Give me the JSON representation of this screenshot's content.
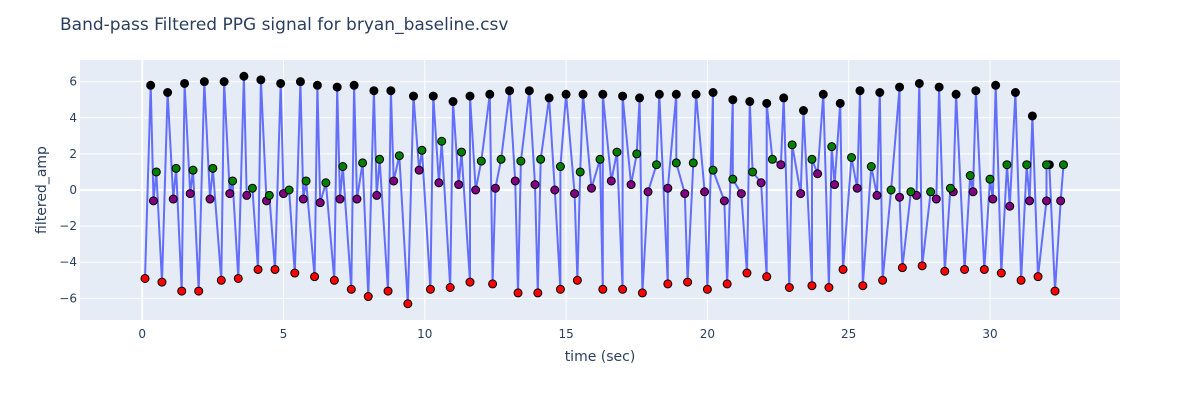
{
  "chart_data": {
    "type": "scatter",
    "title": "Band-pass Filtered PPG signal for bryan_baseline.csv",
    "xlabel": "time (sec)",
    "ylabel": "filtered_amp",
    "xlim": [
      -2.2,
      34.6
    ],
    "ylim": [
      -7.2,
      7.2
    ],
    "x_ticks": [
      0,
      5,
      10,
      15,
      20,
      25,
      30
    ],
    "y_ticks": [
      -6,
      -4,
      -2,
      0,
      2,
      4,
      6
    ],
    "grid": true,
    "legend": "none",
    "colors": {
      "plot_bg": "#e5ecf6",
      "grid": "#ffffff",
      "line": "#636efa",
      "systolic_peak": "#000000",
      "dicrotic_peak": "#008000",
      "dicrotic_notch": "#800080",
      "trough": "#ff0000"
    },
    "series": [
      {
        "marker": "trough",
        "x": [
          0.1,
          0.7,
          1.4,
          2.0,
          2.8,
          3.4,
          4.1,
          4.7,
          5.4,
          6.1,
          6.8,
          7.4,
          8.0,
          8.7,
          9.4,
          10.2,
          10.9,
          11.6,
          12.4,
          13.3,
          14.0,
          14.8,
          15.4,
          16.3,
          17.0,
          17.7,
          18.6,
          19.3,
          20.0,
          20.7,
          21.4,
          22.1,
          22.9,
          23.7,
          24.3,
          24.8,
          25.5,
          26.2,
          26.9,
          27.6,
          28.4,
          29.1,
          29.8,
          30.4,
          31.1,
          31.7,
          32.3
        ],
        "y": [
          -4.9,
          -5.1,
          -5.6,
          -5.6,
          -5.0,
          -4.9,
          -4.4,
          -4.4,
          -4.6,
          -4.8,
          -5.0,
          -5.5,
          -5.9,
          -5.6,
          -6.3,
          -5.5,
          -5.4,
          -5.1,
          -5.2,
          -5.7,
          -5.7,
          -5.5,
          -5.0,
          -5.5,
          -5.5,
          -5.7,
          -5.2,
          -5.1,
          -5.5,
          -5.2,
          -4.6,
          -4.8,
          -5.4,
          -5.3,
          -5.4,
          -4.4,
          -5.3,
          -5.0,
          -4.3,
          -4.2,
          -4.5,
          -4.4,
          -4.4,
          -4.6,
          -5.0,
          -4.8,
          -5.6
        ]
      },
      {
        "marker": "systolic_peak",
        "x": [
          0.3,
          0.9,
          1.5,
          2.2,
          2.9,
          3.6,
          4.2,
          4.9,
          5.6,
          6.2,
          6.9,
          7.5,
          8.2,
          8.8,
          9.6,
          10.3,
          11.0,
          11.6,
          12.3,
          13.0,
          13.7,
          14.4,
          15.0,
          15.6,
          16.3,
          17.0,
          17.6,
          18.3,
          18.9,
          19.6,
          20.2,
          20.9,
          21.5,
          22.1,
          22.7,
          23.4,
          24.1,
          24.7,
          25.4,
          26.1,
          26.8,
          27.5,
          28.2,
          28.8,
          29.5,
          30.2,
          30.9,
          31.5,
          32.1
        ],
        "y": [
          5.8,
          5.4,
          5.9,
          6.0,
          6.0,
          6.3,
          6.1,
          5.9,
          6.0,
          5.8,
          5.7,
          5.8,
          5.5,
          5.5,
          5.2,
          5.2,
          4.9,
          5.2,
          5.3,
          5.5,
          5.5,
          5.1,
          5.3,
          5.3,
          5.3,
          5.2,
          5.1,
          5.3,
          5.3,
          5.3,
          5.4,
          5.0,
          4.9,
          4.8,
          5.1,
          4.4,
          5.3,
          4.8,
          5.5,
          5.4,
          5.7,
          5.9,
          5.7,
          5.3,
          5.5,
          5.8,
          5.4,
          4.1,
          1.4
        ]
      },
      {
        "marker": "dicrotic_notch",
        "x": [
          0.4,
          1.1,
          1.7,
          2.4,
          3.1,
          3.7,
          4.4,
          5.0,
          5.7,
          6.3,
          7.0,
          7.6,
          8.3,
          8.9,
          9.8,
          10.5,
          11.2,
          11.8,
          12.5,
          13.2,
          13.9,
          14.6,
          15.3,
          15.9,
          16.6,
          17.3,
          17.9,
          18.6,
          19.2,
          19.9,
          20.6,
          21.2,
          21.9,
          22.6,
          23.3,
          23.9,
          24.5,
          25.3,
          26.0,
          26.8,
          27.4,
          28.1,
          28.7,
          29.4,
          30.1,
          30.7,
          31.4,
          32.0,
          32.5
        ],
        "y": [
          -0.6,
          -0.5,
          -0.2,
          -0.5,
          -0.2,
          -0.3,
          -0.6,
          -0.2,
          -0.5,
          -0.7,
          -0.5,
          -0.5,
          -0.3,
          0.5,
          1.1,
          0.4,
          0.3,
          0.0,
          0.1,
          0.5,
          0.3,
          0.0,
          -0.2,
          0.1,
          0.5,
          0.3,
          -0.1,
          0.1,
          -0.2,
          -0.1,
          -0.6,
          -0.2,
          0.4,
          1.4,
          -0.2,
          0.9,
          0.3,
          0.1,
          -0.3,
          -0.4,
          -0.3,
          -0.5,
          -0.1,
          -0.1,
          -0.5,
          -0.9,
          -0.6,
          -0.6,
          -0.6
        ]
      },
      {
        "marker": "dicrotic_peak",
        "x": [
          0.5,
          1.2,
          1.8,
          2.5,
          3.2,
          3.9,
          4.5,
          5.2,
          5.8,
          6.5,
          7.1,
          7.8,
          8.4,
          9.1,
          9.9,
          10.6,
          11.3,
          12.0,
          12.7,
          13.4,
          14.1,
          14.8,
          15.5,
          16.2,
          16.8,
          17.5,
          18.2,
          18.9,
          19.5,
          20.2,
          20.9,
          21.6,
          22.3,
          23.0,
          23.7,
          24.4,
          25.1,
          25.8,
          26.5,
          27.2,
          27.9,
          28.6,
          29.3,
          30.0,
          30.6,
          31.3,
          32.0,
          32.6
        ],
        "y": [
          1.0,
          1.2,
          1.1,
          1.2,
          0.5,
          0.1,
          -0.3,
          0.0,
          0.5,
          0.4,
          1.3,
          1.5,
          1.7,
          1.9,
          2.2,
          2.7,
          2.1,
          1.6,
          1.7,
          1.6,
          1.7,
          1.3,
          1.0,
          1.7,
          2.1,
          2.0,
          1.4,
          1.5,
          1.5,
          1.1,
          0.6,
          1.0,
          1.7,
          2.5,
          1.7,
          2.4,
          1.8,
          1.3,
          0.0,
          -0.1,
          -0.1,
          0.1,
          0.8,
          0.6,
          1.4,
          1.4,
          1.4,
          1.4
        ]
      }
    ]
  }
}
